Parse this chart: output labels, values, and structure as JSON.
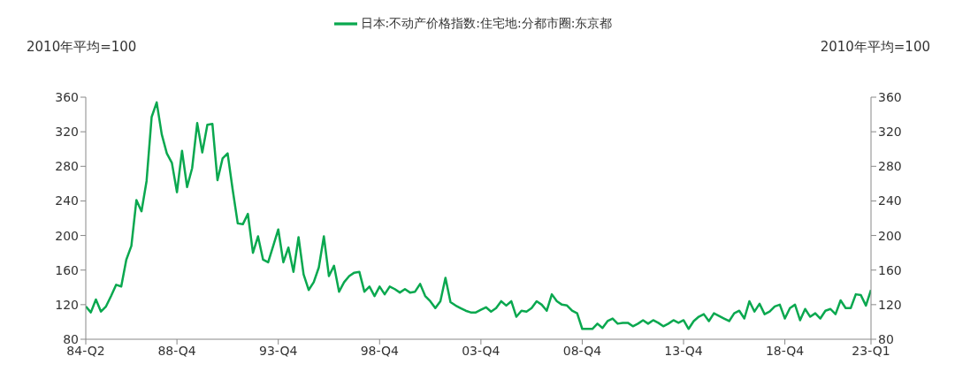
{
  "chart_data": {
    "type": "line",
    "ylabel": "2010年平均=100",
    "y2label": "2010年平均=100",
    "legend": "top",
    "categories": [
      "84-Q2",
      null,
      null,
      null,
      null,
      null,
      null,
      null,
      null,
      null,
      null,
      null,
      null,
      null,
      null,
      null,
      null,
      null,
      "88-Q4",
      null,
      null,
      null,
      null,
      null,
      null,
      null,
      null,
      null,
      null,
      null,
      null,
      null,
      null,
      null,
      null,
      null,
      null,
      null,
      "93-Q4",
      null,
      null,
      null,
      null,
      null,
      null,
      null,
      null,
      null,
      null,
      null,
      null,
      null,
      null,
      null,
      null,
      null,
      null,
      null,
      "98-Q4",
      null,
      null,
      null,
      null,
      null,
      null,
      null,
      null,
      null,
      null,
      null,
      null,
      null,
      null,
      null,
      null,
      null,
      null,
      null,
      "03-Q4",
      null,
      null,
      null,
      null,
      null,
      null,
      null,
      null,
      null,
      null,
      null,
      null,
      null,
      null,
      null,
      null,
      null,
      null,
      null,
      "08-Q4",
      null,
      null,
      null,
      null,
      null,
      null,
      null,
      null,
      null,
      null,
      null,
      null,
      null,
      null,
      null,
      null,
      null,
      null,
      null,
      "13-Q4",
      null,
      null,
      null,
      null,
      null,
      null,
      null,
      null,
      null,
      null,
      null,
      null,
      null,
      null,
      null,
      null,
      null,
      null,
      null,
      "18-Q4",
      null,
      null,
      null,
      null,
      null,
      null,
      null,
      null,
      null,
      null,
      null,
      null,
      null,
      null,
      null,
      null,
      "23-Q1"
    ],
    "ylim": [
      80,
      360
    ],
    "yticks": [
      80,
      120,
      160,
      200,
      240,
      280,
      320,
      360
    ],
    "y2lim": [
      80,
      360
    ],
    "y2ticks": [
      80,
      120,
      160,
      200,
      240,
      280,
      320,
      360
    ],
    "marker": "none",
    "line_style": "solid",
    "series": [
      {
        "name": "日本:不动产价格指数:住宅地:分都市圈:东京都",
        "color": "#0aa84f",
        "values": [
          118,
          111,
          126,
          112,
          118,
          130,
          143,
          141,
          172,
          188,
          241,
          228,
          263,
          337,
          354,
          317,
          295,
          284,
          250,
          298,
          256,
          278,
          330,
          296,
          328,
          329,
          264,
          289,
          295,
          253,
          214,
          213,
          225,
          180,
          199,
          172,
          169,
          188,
          207,
          169,
          186,
          158,
          198,
          155,
          137,
          146,
          163,
          199,
          153,
          165,
          135,
          146,
          153,
          157,
          158,
          135,
          141,
          130,
          141,
          132,
          141,
          138,
          134,
          138,
          134,
          135,
          144,
          130,
          124,
          116,
          124,
          151,
          123,
          119,
          116,
          113,
          111,
          111,
          114,
          117,
          112,
          116,
          124,
          119,
          124,
          106,
          113,
          112,
          116,
          124,
          120,
          113,
          132,
          124,
          120,
          119,
          113,
          110,
          92,
          92,
          92,
          98,
          93,
          101,
          104,
          98,
          99,
          99,
          95,
          98,
          102,
          98,
          102,
          99,
          95,
          98,
          102,
          99,
          102,
          92,
          101,
          106,
          109,
          101,
          110,
          107,
          104,
          101,
          110,
          113,
          104,
          124,
          112,
          121,
          109,
          112,
          118,
          120,
          104,
          116,
          120,
          102,
          115,
          106,
          110,
          104,
          113,
          115,
          109,
          125,
          116,
          116,
          132,
          131,
          119,
          137
        ]
      }
    ]
  }
}
